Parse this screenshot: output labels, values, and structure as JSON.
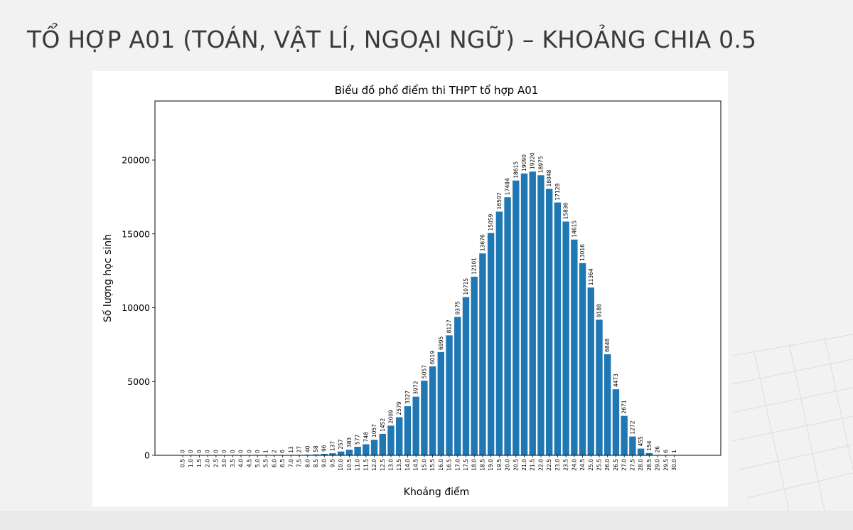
{
  "slide": {
    "title": "TỔ HỢP A01 (TOÁN, VẬT LÍ, NGOẠI NGỮ) – KHOẢNG CHIA 0.5"
  },
  "colors": {
    "bar": "#1f77b4",
    "title_text": "#3a3a3a",
    "background": "#f2f2f2"
  },
  "chart_data": {
    "type": "bar",
    "title": "Biểu đồ phổ điểm thi THPT tổ hợp A01",
    "xlabel": "Khoảng điểm",
    "ylabel": "Số lượng học sinh",
    "ylim": [
      0,
      24000
    ],
    "yticks": [
      "0",
      "5000",
      "10000",
      "15000",
      "20000"
    ],
    "grid": false,
    "categories": [
      "0.5",
      "1.0",
      "1.5",
      "2.0",
      "2.5",
      "3.0",
      "3.5",
      "4.0",
      "4.5",
      "5.0",
      "5.5",
      "6.0",
      "6.5",
      "7.0",
      "7.5",
      "8.0",
      "8.5",
      "9.0",
      "9.5",
      "10.0",
      "10.5",
      "11.0",
      "11.5",
      "12.0",
      "12.5",
      "13.0",
      "13.5",
      "14.0",
      "14.5",
      "15.0",
      "15.5",
      "16.0",
      "16.5",
      "17.0",
      "17.5",
      "18.0",
      "18.5",
      "19.0",
      "19.5",
      "20.0",
      "20.5",
      "21.0",
      "21.5",
      "22.0",
      "22.5",
      "23.0",
      "23.5",
      "24.0",
      "24.5",
      "25.0",
      "25.5",
      "26.0",
      "26.5",
      "27.0",
      "27.5",
      "28.0",
      "28.5",
      "29.0",
      "29.5",
      "30.0"
    ],
    "values": [
      0,
      0,
      0,
      0,
      0,
      0,
      0,
      0,
      0,
      0,
      1,
      2,
      6,
      13,
      27,
      40,
      58,
      96,
      137,
      257,
      383,
      577,
      748,
      1057,
      1452,
      2009,
      2579,
      3327,
      3972,
      5057,
      6019,
      6995,
      8127,
      9375,
      10715,
      12101,
      13676,
      15059,
      16507,
      17484,
      18615,
      19090,
      19220,
      18975,
      18048,
      17128,
      15836,
      14615,
      13016,
      11364,
      9188,
      6848,
      4473,
      2671,
      1272,
      455,
      154,
      26,
      6,
      1
    ],
    "value_labels": [
      "0",
      "0",
      "0",
      "0",
      "0",
      "0",
      "0",
      "0",
      "0",
      "0",
      "1",
      "2",
      "6",
      "13",
      "27",
      "40",
      "58",
      "96",
      "137",
      "257",
      "383",
      "577",
      "748",
      "1057",
      "1452",
      "2009",
      "2579",
      "3327",
      "3972",
      "5057",
      "6019",
      "6995",
      "8127",
      "9375",
      "10715",
      "12101",
      "13676",
      "15059",
      "16507",
      "17484",
      "18615",
      "19090",
      "19220",
      "18975",
      "18048",
      "17128",
      "15836",
      "14615",
      "13016",
      "11364",
      "9188",
      "6848",
      "4473",
      "2671",
      "1272",
      "455",
      "154",
      "26",
      "6",
      "1"
    ]
  }
}
